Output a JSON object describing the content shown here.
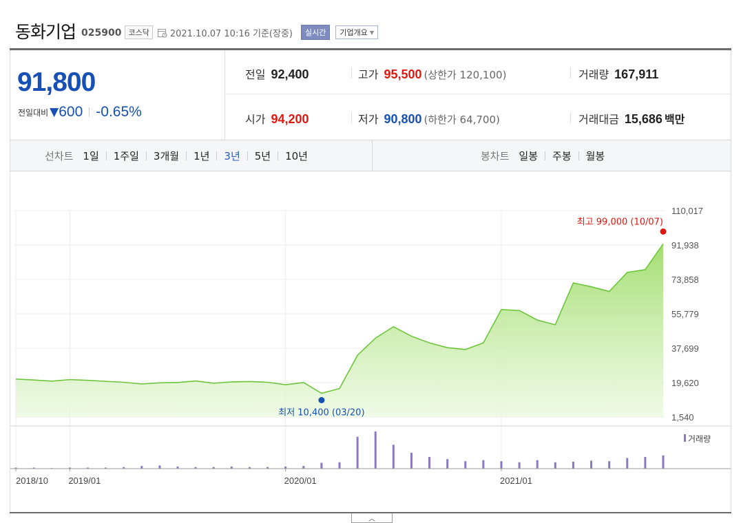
{
  "header": {
    "company_name": "동화기업",
    "stock_code": "025900",
    "market": "코스닥",
    "timestamp": "2021.10.07 10:16  기준(장중)",
    "realtime_label": "실시간",
    "overview_label": "기업개요"
  },
  "quote": {
    "current_price": "91,800",
    "change_label": "전일대비",
    "change_amount": "600",
    "change_rate": "-0.65%",
    "prev_close_label": "전일",
    "prev_close": "92,400",
    "high_label": "고가",
    "high": "95,500",
    "upper_limit": "(상한가 120,100)",
    "volume_label": "거래량",
    "volume": "167,911",
    "open_label": "시가",
    "open": "94,200",
    "low_label": "저가",
    "low": "90,800",
    "lower_limit": "(하한가 64,700)",
    "trade_value_label": "거래대금",
    "trade_value": "15,686",
    "trade_value_unit": "백만"
  },
  "colors": {
    "up": "#e0170e",
    "down": "#1650b5",
    "area": "#8cd452",
    "volume_bar": "#8a78c2"
  },
  "line_chart": {
    "label": "선차트",
    "periods": [
      "1일",
      "1주일",
      "3개월",
      "1년",
      "3년",
      "5년",
      "10년"
    ],
    "active": "3년"
  },
  "candle_chart": {
    "label": "봉차트",
    "periods": [
      "일봉",
      "주봉",
      "월봉"
    ]
  },
  "chart_data": {
    "type": "area",
    "series": [
      {
        "x": [
          "2018/10",
          "2018/11",
          "2018/12",
          "2019/01",
          "2019/02",
          "2019/03",
          "2019/04",
          "2019/05",
          "2019/06",
          "2019/07",
          "2019/08",
          "2019/09",
          "2019/10",
          "2019/11",
          "2019/12",
          "2020/01",
          "2020/02",
          "2020/03",
          "2020/04",
          "2020/05",
          "2020/06",
          "2020/07",
          "2020/08",
          "2020/09",
          "2020/10",
          "2020/11",
          "2020/12",
          "2021/01",
          "2021/02",
          "2021/03",
          "2021/04",
          "2021/05",
          "2021/06",
          "2021/07",
          "2021/08",
          "2021/09",
          "2021/10"
        ],
        "values": [
          21500,
          21000,
          20400,
          21200,
          20800,
          20300,
          19800,
          18900,
          19500,
          19700,
          20500,
          19300,
          20000,
          20200,
          19800,
          18500,
          19700,
          14000,
          16500,
          34000,
          43000,
          49000,
          44000,
          40500,
          38000,
          37000,
          40500,
          58000,
          57500,
          52500,
          50000,
          72000,
          70000,
          67500,
          77500,
          79000,
          92500
        ]
      }
    ],
    "volume": {
      "name": "거래량",
      "values": [
        2,
        2,
        1,
        2,
        2,
        2,
        3,
        5,
        6,
        4,
        3,
        3,
        4,
        3,
        3,
        4,
        5,
        11,
        12,
        60,
        70,
        45,
        30,
        22,
        18,
        14,
        16,
        14,
        12,
        16,
        12,
        13,
        15,
        14,
        20,
        22,
        25
      ]
    },
    "high_marker": {
      "label": "최고 99,000 (10/07)",
      "value": 99000,
      "x": "2021/10"
    },
    "low_marker": {
      "label": "최저 10,400 (03/20)",
      "value": 10400,
      "x": "2020/03"
    },
    "y_ticks": [
      "110,017",
      "91,938",
      "73,858",
      "55,779",
      "37,699",
      "19,620",
      "1,540"
    ],
    "ylim": [
      1540,
      110017
    ],
    "x_ticks": [
      "2018/10",
      "2019/01",
      "2020/01",
      "2021/01"
    ],
    "grid": true
  },
  "footer": {
    "collapse_icon": "chevron-up-icon"
  }
}
